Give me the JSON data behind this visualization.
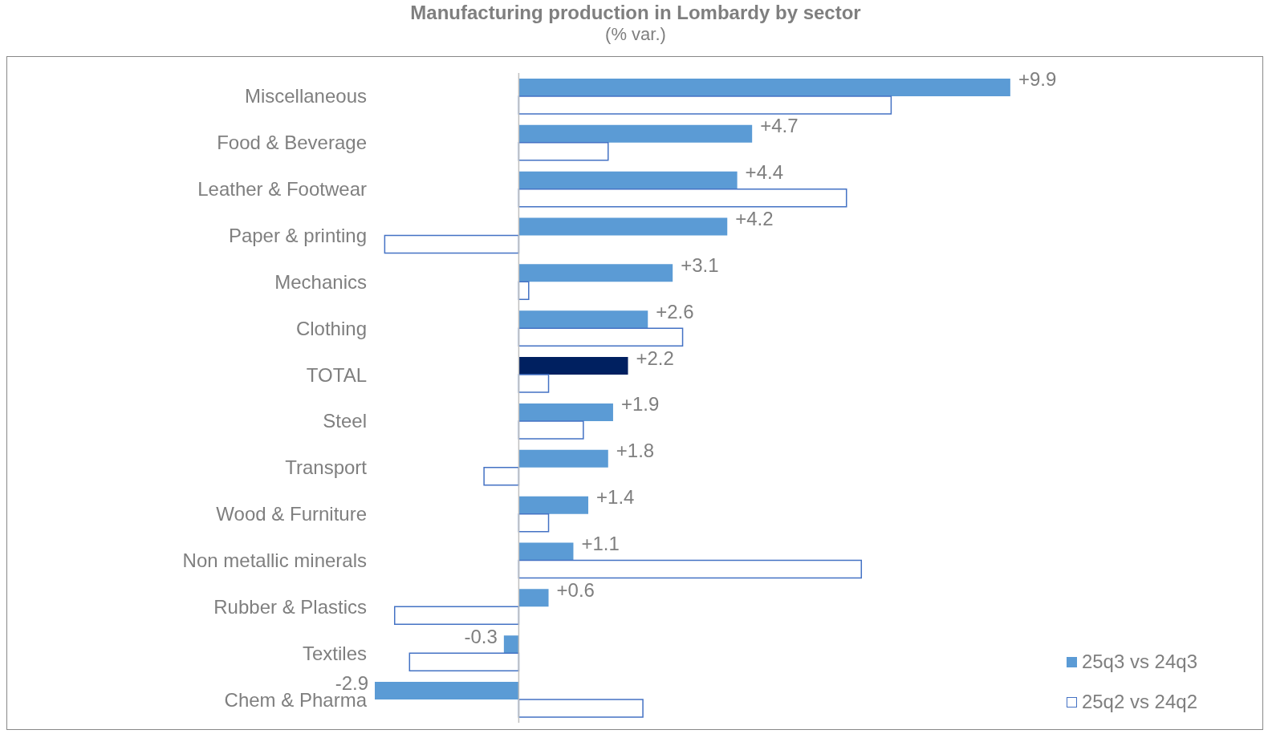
{
  "chart_data": {
    "type": "bar",
    "orientation": "horizontal",
    "title": "Manufacturing production in Lombardy by sector",
    "subtitle": "(% var.)",
    "categories": [
      "Miscellaneous",
      "Food & Beverage",
      "Leather & Footwear",
      "Paper & printing",
      "Mechanics",
      "Clothing",
      "TOTAL",
      "Steel",
      "Transport",
      "Wood & Furniture",
      "Non metallic minerals",
      "Rubber & Plastics",
      "Textiles",
      "Chem & Pharma"
    ],
    "legend": "bottom right",
    "tick_labels": "y",
    "series": [
      {
        "name": "25q3 vs 24q3",
        "color": "#5b9bd5",
        "colors": [
          "#5b9bd5",
          "#5b9bd5",
          "#5b9bd5",
          "#5b9bd5",
          "#5b9bd5",
          "#5b9bd5",
          "#002060",
          "#5b9bd5",
          "#5b9bd5",
          "#5b9bd5",
          "#5b9bd5",
          "#5b9bd5",
          "#5b9bd5",
          "#5b9bd5"
        ],
        "values": [
          9.9,
          4.7,
          4.4,
          4.2,
          3.1,
          2.6,
          2.2,
          1.9,
          1.8,
          1.4,
          1.1,
          0.6,
          -0.3,
          -2.9
        ],
        "value_labels": [
          "+9.9",
          "+4.7",
          "+4.4",
          "+4.2",
          "+3.1",
          "+2.6",
          "+2.2",
          "+1.9",
          "+1.8",
          "+1.4",
          "+1.1",
          "+0.6",
          "-0.3",
          "-2.9"
        ]
      },
      {
        "name": "25q2 vs 24q2",
        "color": "#4472c4",
        "values": [
          7.5,
          1.8,
          6.6,
          -2.7,
          0.2,
          3.3,
          0.6,
          1.3,
          -0.7,
          0.6,
          6.9,
          -2.5,
          -2.2,
          2.5
        ]
      }
    ]
  }
}
